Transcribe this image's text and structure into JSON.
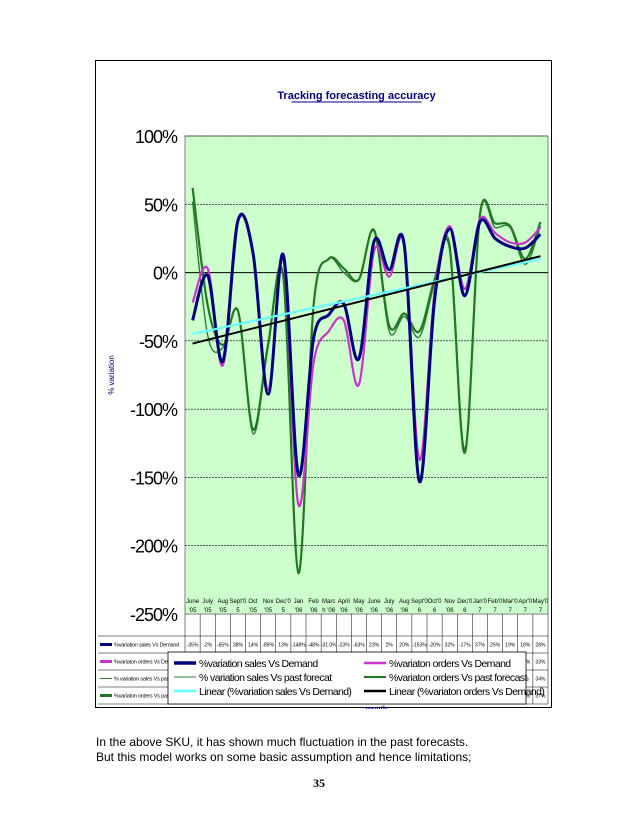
{
  "caption": {
    "line1": "In the above SKU, it has shown much fluctuation in the past forecasts.",
    "line2": "But this model works on some basic assumption and hence limitations;"
  },
  "page_number": "35",
  "colors": {
    "plot_bg": "#ccffcc",
    "demand_sales": "#000080",
    "demand_orders": "#cc33cc",
    "forecast_sales": "#2e7d3a",
    "forecast_orders": "#1f7a1f",
    "trend_sales": "#66ffff",
    "trend_orders": "#000000",
    "title": "#000080"
  },
  "chart_data": {
    "type": "line",
    "title": "Tracking forecasting accuracy",
    "ylabel": "% variation",
    "xlabel": "month",
    "ylim": [
      -250,
      100
    ],
    "yticks": [
      100,
      50,
      0,
      -50,
      -100,
      -150,
      -200,
      -250
    ],
    "ytick_labels": [
      "100%",
      "50%",
      "0%",
      "-50%",
      "-100%",
      "-150%",
      "-200%",
      "-250%"
    ],
    "categories": [
      {
        "top": "June",
        "bot": "'05"
      },
      {
        "top": "July",
        "bot": "'05"
      },
      {
        "top": "Aug",
        "bot": "'05"
      },
      {
        "top": "Sept'0",
        "bot": "5"
      },
      {
        "top": "Oct",
        "bot": "'05"
      },
      {
        "top": "Nov",
        "bot": "'05"
      },
      {
        "top": "Dec'0",
        "bot": "5"
      },
      {
        "top": "Jan",
        "bot": "'06"
      },
      {
        "top": "Feb",
        "bot": "'06"
      },
      {
        "top": "Marc",
        "bot": "h '06"
      },
      {
        "top": "April",
        "bot": "'06"
      },
      {
        "top": "May",
        "bot": "'06"
      },
      {
        "top": "June",
        "bot": "'06"
      },
      {
        "top": "July",
        "bot": "'06"
      },
      {
        "top": "Aug",
        "bot": "'06"
      },
      {
        "top": "Sept'0",
        "bot": "6"
      },
      {
        "top": "Oct'0",
        "bot": "6"
      },
      {
        "top": "Nov",
        "bot": "'06"
      },
      {
        "top": "Dec'0",
        "bot": "6"
      },
      {
        "top": "Jan'0",
        "bot": "7"
      },
      {
        "top": "Feb'0",
        "bot": "7"
      },
      {
        "top": "Mar'0",
        "bot": "7"
      },
      {
        "top": "Apr'0",
        "bot": "7"
      },
      {
        "top": "May'0",
        "bot": "7"
      }
    ],
    "series": [
      {
        "key": "demand_sales",
        "name": "%variation sales Vs Demand",
        "table_label": "%variation sales Vs Demand",
        "values": [
          -35,
          -2,
          -65,
          38,
          14,
          -89,
          13,
          -148,
          -48,
          -31,
          -23,
          -63,
          23,
          2,
          20,
          -153,
          -20,
          32,
          -17,
          37,
          25,
          19,
          18,
          28
        ],
        "cells": [
          "-35%",
          "-2%",
          "-65%",
          "38%",
          "14%",
          "-89%",
          "13%",
          "-148%",
          "-48%",
          "-31.0%",
          "-23%",
          "-63%",
          "23%",
          "2%",
          "20%",
          "-153%",
          "-20%",
          "32%",
          "-17%",
          "37%",
          "25%",
          "19%",
          "18%",
          "28%"
        ]
      },
      {
        "key": "demand_orders",
        "name": "%variaton orders Vs Demand",
        "table_label": "%variaton orders Vs Demand",
        "values": [
          -22,
          3,
          -68,
          37,
          13,
          -86,
          10,
          -170,
          -66,
          -43,
          -35,
          -82,
          16,
          -3,
          20,
          -137,
          -14,
          34,
          -12,
          39,
          29,
          22,
          22,
          33
        ],
        "cells": [
          "-22%",
          "3%",
          "-68%",
          "37%",
          "13%",
          "-86%",
          "10%",
          "-170%",
          "-66%",
          "-43%",
          "-35%",
          "-82%",
          "16%",
          "-3%",
          "20%",
          "-137%",
          "-14%",
          "34%",
          "-12%",
          "39%",
          "29%",
          "22%",
          "22%",
          "33%"
        ]
      },
      {
        "key": "forecast_sales",
        "name": "% variation sales Vs past forecat",
        "table_label": "% variation sales Vs past forecat",
        "values": [
          52,
          -46,
          -55,
          -28,
          -118,
          -54,
          -4,
          -220,
          -24,
          10,
          0,
          -5,
          30,
          -43,
          -32,
          -47,
          -8,
          21,
          -129,
          42,
          33,
          33,
          6,
          34
        ],
        "cells": [
          "52%",
          "-46%",
          "-55%",
          "-28%",
          "-118%",
          "-54%",
          "-4%",
          "-220%",
          "-24%",
          "10%",
          "0%",
          "-5%",
          "30%",
          "-43%",
          "-32%",
          "-47%",
          "-8%",
          "21%",
          "-129%",
          "42%",
          "33%",
          "33%",
          "6%",
          "34%"
        ]
      },
      {
        "key": "forecast_orders",
        "name": "%variaton orders Vs past forecast",
        "table_label": "%variaton orders Vs past forecast",
        "values": [
          62,
          -24,
          -53,
          -28,
          -115,
          -52,
          -3,
          -220,
          -24,
          10,
          3,
          -5,
          31,
          -39,
          -30,
          -43,
          -5,
          18,
          -132,
          42,
          36,
          34,
          10,
          37
        ],
        "cells": [
          "62%",
          "-24%",
          "-53%",
          "-28%",
          "-115%",
          "-52%",
          "-3%",
          "-220%",
          "-24%",
          "10%",
          "3%",
          "-5%",
          "31%",
          "-39%",
          "-30%",
          "-43%",
          "-5%",
          "18%",
          "-132%",
          "42%",
          "36%",
          "34%",
          "10%",
          "37%"
        ]
      }
    ],
    "trendlines": [
      {
        "key": "trend_sales",
        "name": "Linear (%variation sales Vs Demand)",
        "start": -45,
        "end": 10
      },
      {
        "key": "trend_orders",
        "name": "Linear (%variaton orders Vs Demand)",
        "start": -52,
        "end": 12
      }
    ],
    "legend": {
      "placement": "bottom",
      "entries": [
        {
          "key": "demand_sales",
          "label": "%variation sales Vs Demand"
        },
        {
          "key": "demand_orders",
          "label": "%variaton orders Vs Demand"
        },
        {
          "key": "forecast_sales",
          "label": "% variation sales Vs past forecat"
        },
        {
          "key": "forecast_orders",
          "label": "%variaton orders Vs past forecast"
        },
        {
          "key": "trend_sales",
          "label": "Linear (%variation sales Vs Demand)"
        },
        {
          "key": "trend_orders",
          "label": "Linear (%variaton orders Vs Demand)"
        }
      ]
    }
  }
}
